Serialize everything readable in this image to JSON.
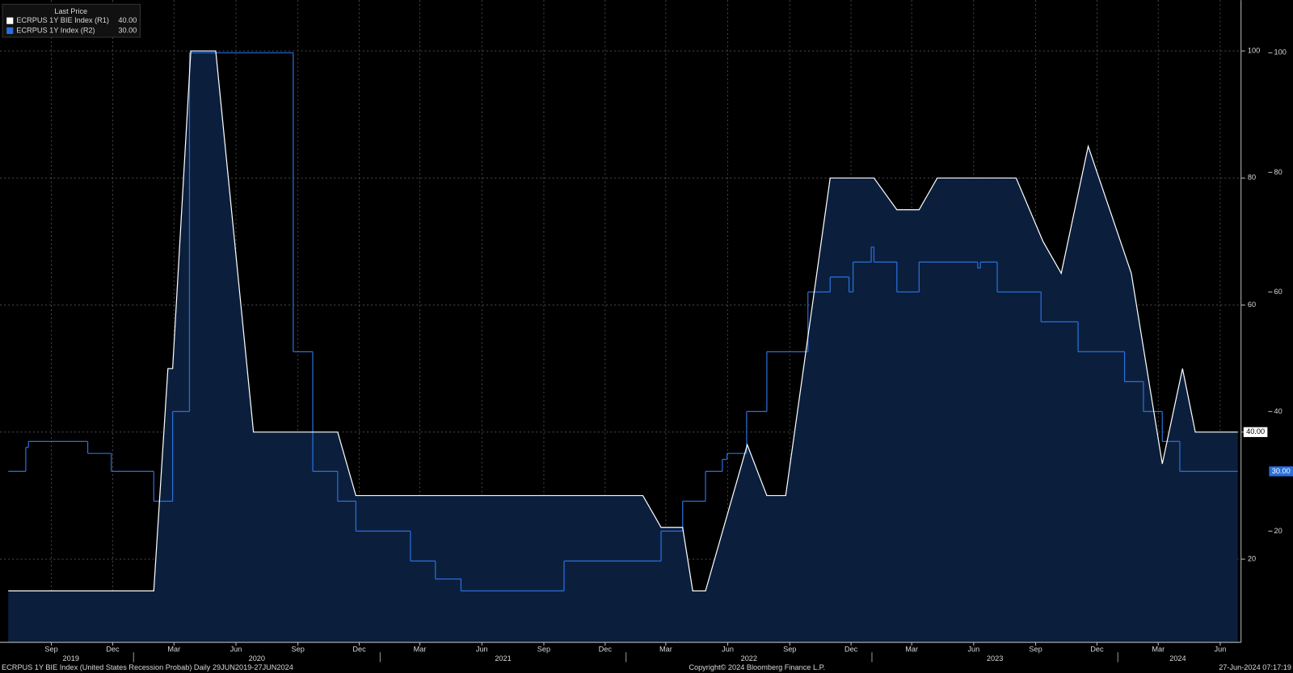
{
  "chart_data": {
    "type": "line",
    "legend_title": "Last Price",
    "legend_position": "top-left",
    "footer_left": "ECRPUS 1Y BIE Index (United States Recession Probab)  Daily 29JUN2019-27JUN2024",
    "footer_center": "Copyright© 2024 Bloomberg Finance L.P.",
    "footer_right": "27-Jun-2024 07:17:19",
    "grid": true,
    "xlim": [
      "2019-06-29",
      "2024-06-27"
    ],
    "xticks": [
      {
        "value": "2019-09-01",
        "label": "Sep"
      },
      {
        "value": "2019-12-01",
        "label": "Dec"
      },
      {
        "value": "2020-03-01",
        "label": "Mar"
      },
      {
        "value": "2020-06-01",
        "label": "Jun"
      },
      {
        "value": "2020-09-01",
        "label": "Sep"
      },
      {
        "value": "2020-12-01",
        "label": "Dec"
      },
      {
        "value": "2021-03-01",
        "label": "Mar"
      },
      {
        "value": "2021-06-01",
        "label": "Jun"
      },
      {
        "value": "2021-09-01",
        "label": "Sep"
      },
      {
        "value": "2021-12-01",
        "label": "Dec"
      },
      {
        "value": "2022-03-01",
        "label": "Mar"
      },
      {
        "value": "2022-06-01",
        "label": "Jun"
      },
      {
        "value": "2022-09-01",
        "label": "Sep"
      },
      {
        "value": "2022-12-01",
        "label": "Dec"
      },
      {
        "value": "2023-03-01",
        "label": "Mar"
      },
      {
        "value": "2023-06-01",
        "label": "Jun"
      },
      {
        "value": "2023-09-01",
        "label": "Sep"
      },
      {
        "value": "2023-12-01",
        "label": "Dec"
      },
      {
        "value": "2024-03-01",
        "label": "Mar"
      },
      {
        "value": "2024-06-01",
        "label": "Jun"
      }
    ],
    "years": [
      "2019",
      "2020",
      "2021",
      "2022",
      "2023",
      "2024"
    ],
    "ylim": [
      6.9,
      108
    ],
    "yticks": [
      20,
      40,
      60,
      80,
      100
    ],
    "y2lim": [
      1.4,
      108.8
    ],
    "y2ticks": [
      20,
      40,
      60,
      80,
      100
    ],
    "series": [
      {
        "name": "ECRPUS 1Y BIE Index  (R1)",
        "last_label": "40.00",
        "color": "#ffffff",
        "fill": "#0b1f3d",
        "axis": "y",
        "x": [
          "2019-06-29",
          "2020-01-31",
          "2020-02-21",
          "2020-02-28",
          "2020-03-26",
          "2020-05-02",
          "2020-06-27",
          "2020-10-30",
          "2020-11-26",
          "2022-01-26",
          "2022-02-22",
          "2022-03-26",
          "2022-04-10",
          "2022-04-29",
          "2022-06-30",
          "2022-07-29",
          "2022-08-26",
          "2022-10-31",
          "2023-01-04",
          "2023-02-07",
          "2023-03-12",
          "2023-04-08",
          "2023-08-03",
          "2023-09-12",
          "2023-10-09",
          "2023-11-18",
          "2024-01-21",
          "2024-03-07",
          "2024-04-06",
          "2024-04-25",
          "2024-06-27"
        ],
        "values": [
          15,
          15,
          50,
          50,
          100,
          100,
          40,
          40,
          30,
          30,
          25,
          25,
          15,
          15,
          38,
          30,
          30,
          80,
          80,
          75,
          75,
          80,
          80,
          70,
          65,
          85,
          65,
          35,
          50,
          40,
          40
        ]
      },
      {
        "name": "ECRPUS 1Y Index  (R2)",
        "last_label": "30.00",
        "color": "#2a6fdb",
        "axis": "y2",
        "step": true,
        "x": [
          "2019-06-29",
          "2019-07-25",
          "2019-07-29",
          "2019-10-25",
          "2019-11-29",
          "2020-01-31",
          "2020-02-28",
          "2020-03-24",
          "2020-08-25",
          "2020-09-23",
          "2020-10-30",
          "2020-11-26",
          "2021-02-15",
          "2021-03-24",
          "2021-05-01",
          "2021-10-01",
          "2022-02-22",
          "2022-03-26",
          "2022-04-29",
          "2022-05-24",
          "2022-05-31",
          "2022-06-29",
          "2022-07-29",
          "2022-09-28",
          "2022-10-31",
          "2022-11-28",
          "2022-12-04",
          "2022-12-31",
          "2023-01-04",
          "2023-02-07",
          "2023-03-12",
          "2023-06-07",
          "2023-06-11",
          "2023-07-06",
          "2023-09-09",
          "2023-11-03",
          "2024-01-11",
          "2024-02-08",
          "2024-03-07",
          "2024-04-02"
        ],
        "values": [
          30,
          34,
          35,
          33,
          30,
          25,
          40,
          100,
          50,
          30,
          25,
          20,
          15,
          12,
          10,
          15,
          20,
          25,
          30,
          32,
          33,
          40,
          50,
          60,
          62.5,
          60,
          65,
          67.5,
          65,
          60,
          65,
          64,
          65,
          60,
          55,
          50,
          45,
          40,
          35,
          30
        ]
      }
    ]
  }
}
